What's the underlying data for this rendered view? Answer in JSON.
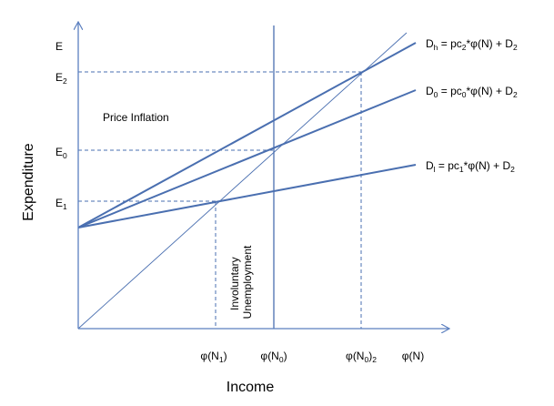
{
  "colors": {
    "axis": "#5b7fbf",
    "curve": "#4a6fb0",
    "guide": "#4a6fb0",
    "text": "#000000"
  },
  "axes": {
    "y_label": "Expenditure",
    "x_label": "Income",
    "y_top_label": "E",
    "x_end_label": "φ(N)"
  },
  "y_ticks": {
    "e2": {
      "base": "E",
      "sub": "2"
    },
    "e0": {
      "base": "E",
      "sub": "0"
    },
    "e1": {
      "base": "E",
      "sub": "1"
    }
  },
  "x_ticks": {
    "n1": {
      "base": "φ(N",
      "sub": "1",
      "tail": ")"
    },
    "n0": {
      "base": "φ(N",
      "sub": "0",
      "tail": ")"
    },
    "n02": {
      "base": "φ(N",
      "sub": "0",
      "mid": ")",
      "sub2": "2"
    }
  },
  "lines": {
    "dh": {
      "pre": "D",
      "pre_sub": "h",
      "mid": " = pc",
      "mid_sub": "2",
      "post": "*φ(N) + D",
      "post_sub": "2"
    },
    "d0": {
      "pre": "D",
      "pre_sub": "0",
      "mid": " = pc",
      "mid_sub": "0",
      "post": "*φ(N) + D",
      "post_sub": "2"
    },
    "dl": {
      "pre": "D",
      "pre_sub": "l",
      "mid": " = pc",
      "mid_sub": "1",
      "post": "*φ(N) + D",
      "post_sub": "2"
    }
  },
  "annotations": {
    "price_inflation": "Price Inflation",
    "involuntary_line1": "Involuntary",
    "involuntary_line2": "Unemployment"
  }
}
